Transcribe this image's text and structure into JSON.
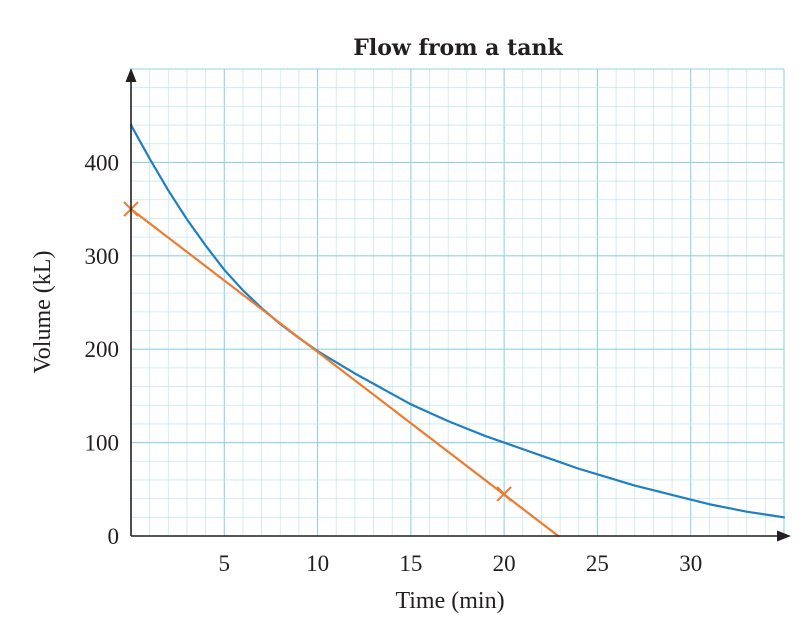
{
  "chart_data": {
    "type": "line",
    "title": "Flow from a tank",
    "xlabel": "Time (min)",
    "ylabel": "Volume (kL)",
    "xlim": [
      0,
      35
    ],
    "ylim": [
      0,
      500
    ],
    "x_ticks": [
      5,
      10,
      15,
      20,
      25,
      30
    ],
    "y_ticks": [
      0,
      100,
      200,
      300,
      400
    ],
    "x_minor_step": 1,
    "y_minor_step": 20,
    "grid": true,
    "series": [
      {
        "color": "#1f7fc0",
        "points": [
          [
            0,
            440
          ],
          [
            1,
            404
          ],
          [
            2,
            370
          ],
          [
            3,
            339
          ],
          [
            4,
            311
          ],
          [
            5,
            285
          ],
          [
            6,
            263
          ],
          [
            7,
            244
          ],
          [
            8,
            227
          ],
          [
            9,
            212
          ],
          [
            10,
            198
          ],
          [
            11,
            186
          ],
          [
            12,
            174
          ],
          [
            13,
            163
          ],
          [
            14,
            152
          ],
          [
            15,
            141
          ],
          [
            16,
            132
          ],
          [
            17,
            123
          ],
          [
            18,
            115
          ],
          [
            19,
            107
          ],
          [
            20,
            100
          ],
          [
            21,
            93
          ],
          [
            22,
            86
          ],
          [
            23,
            79
          ],
          [
            24,
            72
          ],
          [
            25,
            66
          ],
          [
            26,
            60
          ],
          [
            27,
            54
          ],
          [
            28,
            49
          ],
          [
            29,
            44
          ],
          [
            30,
            39
          ],
          [
            31,
            34
          ],
          [
            32,
            30
          ],
          [
            33,
            26
          ],
          [
            34,
            23
          ],
          [
            35,
            20
          ]
        ]
      },
      {
        "color": "#ef7b2f",
        "points": [
          [
            0,
            350
          ],
          [
            22.9,
            0
          ]
        ],
        "markers": [
          [
            0,
            350
          ],
          [
            20,
            45
          ]
        ]
      }
    ]
  }
}
